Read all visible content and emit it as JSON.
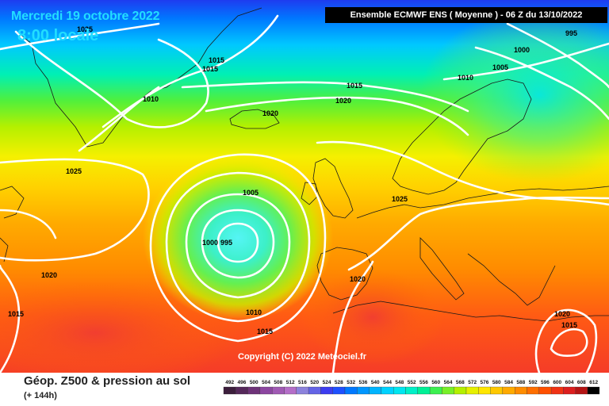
{
  "header": {
    "date": "Mercredi 19 octobre 2022",
    "local_time": "8:00 locale",
    "model_run": "Ensemble ECMWF ENS  ( Moyenne )  -  06 Z du 13/10/2022"
  },
  "map": {
    "copyright": "Copyright (C) 2022 Meteociel.fr",
    "pressure_labels": [
      {
        "text": "1025",
        "name": "isobar-label-1025-greenland-north"
      },
      {
        "text": "995",
        "name": "isobar-label-995-northeast"
      },
      {
        "text": "1000",
        "name": "isobar-label-1000-northeast"
      },
      {
        "text": "1015",
        "name": "isobar-label-1015-greenland-a"
      },
      {
        "text": "1015",
        "name": "isobar-label-1015-greenland-b"
      },
      {
        "text": "1005",
        "name": "isobar-label-1005-norway-sea"
      },
      {
        "text": "1010",
        "name": "isobar-label-1010-scandinavia"
      },
      {
        "text": "1010",
        "name": "isobar-label-1010-greenland"
      },
      {
        "text": "1015",
        "name": "isobar-label-1015-north-atlantic"
      },
      {
        "text": "1020",
        "name": "isobar-label-1020-north-atlantic"
      },
      {
        "text": "1020",
        "name": "isobar-label-1020-iceland"
      },
      {
        "text": "1025",
        "name": "isobar-label-1025-west"
      },
      {
        "text": "1005",
        "name": "isobar-label-1005-low-north"
      },
      {
        "text": "1025",
        "name": "isobar-label-1025-channel"
      },
      {
        "text": "1000",
        "name": "isobar-label-1000-low-center"
      },
      {
        "text": "995",
        "name": "isobar-label-995-low-center"
      },
      {
        "text": "1020",
        "name": "isobar-label-1020-southwest"
      },
      {
        "text": "1020",
        "name": "isobar-label-1020-iberia"
      },
      {
        "text": "1015",
        "name": "isobar-label-1015-far-west"
      },
      {
        "text": "1010",
        "name": "isobar-label-1010-low-south"
      },
      {
        "text": "1015",
        "name": "isobar-label-1015-low-south"
      },
      {
        "text": "1020",
        "name": "isobar-label-1020-east-med"
      },
      {
        "text": "1015",
        "name": "isobar-label-1015-east-med"
      }
    ]
  },
  "footer": {
    "parameter": "Géop. Z500 & pression au sol",
    "lead_time": "(+ 144h)"
  },
  "legend": {
    "labels": [
      "492",
      "496",
      "500",
      "504",
      "508",
      "512",
      "516",
      "520",
      "524",
      "528",
      "532",
      "536",
      "540",
      "544",
      "548",
      "552",
      "556",
      "560",
      "564",
      "568",
      "572",
      "576",
      "580",
      "584",
      "588",
      "592",
      "596",
      "600",
      "604",
      "608",
      "612"
    ],
    "colors": [
      "#3c1e3c",
      "#55285a",
      "#6e3278",
      "#8c46a0",
      "#a05ab4",
      "#b46ec8",
      "#8c82dc",
      "#6464e6",
      "#3c3cf0",
      "#1e50ff",
      "#0078ff",
      "#0096ff",
      "#00b4ff",
      "#00d2ff",
      "#00e6f0",
      "#00f0c8",
      "#00f096",
      "#3cf050",
      "#78f028",
      "#b4f000",
      "#e6f000",
      "#ffe600",
      "#ffc800",
      "#ffaa00",
      "#ff8c00",
      "#ff6e00",
      "#ff5000",
      "#f03214",
      "#dc1e1e",
      "#b41414",
      "#000000"
    ]
  }
}
